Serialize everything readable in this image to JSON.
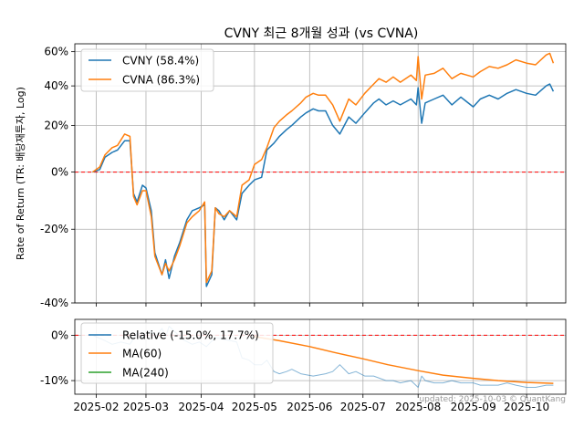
{
  "title": "CVNY 최근 8개월 성과 (vs CVNA)",
  "footer": "updated: 2025-10-03 © QuantKang",
  "colors": {
    "cvny": "#1f77b4",
    "cvna": "#ff7f0e",
    "relative": "#1f77b4",
    "ma60": "#ff7f0e",
    "ma240": "#2ca02c",
    "zero": "#ff0000",
    "grid": "#b0b0b0"
  },
  "chart_data": [
    {
      "type": "line",
      "title": "CVNY 최근 8개월 성과 (vs CVNA)",
      "ylabel": "Rate of Return (TR: 배당재투자, Log)",
      "xlabel": "",
      "yscale": "log",
      "ylim": [
        -40,
        65
      ],
      "yticks": [
        -40,
        -20,
        0,
        20,
        40,
        60
      ],
      "ytick_labels": [
        "-40%",
        "-20%",
        "0%",
        "20%",
        "40%",
        "60%"
      ],
      "x_ticks": [
        "2025-02",
        "2025-03",
        "2025-04",
        "2025-05",
        "2025-06",
        "2025-07",
        "2025-08",
        "2025-09",
        "2025-10"
      ],
      "grid": true,
      "legend_position": "top-left",
      "series": [
        {
          "name": "CVNY (58.4%)",
          "points": [
            [
              "2025-01-30",
              0
            ],
            [
              "2025-02-03",
              1
            ],
            [
              "2025-02-06",
              6
            ],
            [
              "2025-02-10",
              8
            ],
            [
              "2025-02-13",
              9
            ],
            [
              "2025-02-17",
              13
            ],
            [
              "2025-02-20",
              13
            ],
            [
              "2025-02-22",
              -8
            ],
            [
              "2025-02-24",
              -11
            ],
            [
              "2025-02-27",
              -5
            ],
            [
              "2025-03-01",
              -6
            ],
            [
              "2025-03-04",
              -14
            ],
            [
              "2025-03-06",
              -27
            ],
            [
              "2025-03-10",
              -33
            ],
            [
              "2025-03-12",
              -29
            ],
            [
              "2025-03-14",
              -34
            ],
            [
              "2025-03-17",
              -28
            ],
            [
              "2025-03-20",
              -24
            ],
            [
              "2025-03-24",
              -17
            ],
            [
              "2025-03-27",
              -14
            ],
            [
              "2025-03-31",
              -13
            ],
            [
              "2025-04-03",
              -12
            ],
            [
              "2025-04-04",
              -36
            ],
            [
              "2025-04-07",
              -33
            ],
            [
              "2025-04-09",
              -13
            ],
            [
              "2025-04-11",
              -14
            ],
            [
              "2025-04-14",
              -17
            ],
            [
              "2025-04-17",
              -14
            ],
            [
              "2025-04-21",
              -17
            ],
            [
              "2025-04-24",
              -8
            ],
            [
              "2025-04-28",
              -5
            ],
            [
              "2025-05-01",
              -3
            ],
            [
              "2025-05-05",
              -2
            ],
            [
              "2025-05-08",
              9
            ],
            [
              "2025-05-12",
              12
            ],
            [
              "2025-05-15",
              15
            ],
            [
              "2025-05-19",
              18
            ],
            [
              "2025-05-22",
              20
            ],
            [
              "2025-05-27",
              24
            ],
            [
              "2025-05-30",
              26
            ],
            [
              "2025-06-03",
              28
            ],
            [
              "2025-06-06",
              27
            ],
            [
              "2025-06-10",
              27
            ],
            [
              "2025-06-14",
              20
            ],
            [
              "2025-06-18",
              16
            ],
            [
              "2025-06-23",
              24
            ],
            [
              "2025-06-27",
              21
            ],
            [
              "2025-07-02",
              26
            ],
            [
              "2025-07-07",
              31
            ],
            [
              "2025-07-10",
              33
            ],
            [
              "2025-07-14",
              30
            ],
            [
              "2025-07-18",
              32
            ],
            [
              "2025-07-22",
              30
            ],
            [
              "2025-07-28",
              33
            ],
            [
              "2025-07-31",
              30
            ],
            [
              "2025-08-01",
              39
            ],
            [
              "2025-08-03",
              21
            ],
            [
              "2025-08-05",
              31
            ],
            [
              "2025-08-10",
              33
            ],
            [
              "2025-08-15",
              35
            ],
            [
              "2025-08-20",
              30
            ],
            [
              "2025-08-25",
              34
            ],
            [
              "2025-09-01",
              29
            ],
            [
              "2025-09-05",
              33
            ],
            [
              "2025-09-10",
              35
            ],
            [
              "2025-09-15",
              33
            ],
            [
              "2025-09-20",
              36
            ],
            [
              "2025-09-25",
              38
            ],
            [
              "2025-10-01",
              36
            ],
            [
              "2025-10-06",
              35
            ],
            [
              "2025-10-12",
              40
            ],
            [
              "2025-10-14",
              41
            ],
            [
              "2025-10-16",
              37
            ]
          ]
        },
        {
          "name": "CVNA (86.3%)",
          "points": [
            [
              "2025-01-30",
              0
            ],
            [
              "2025-02-03",
              2
            ],
            [
              "2025-02-06",
              7
            ],
            [
              "2025-02-10",
              10
            ],
            [
              "2025-02-13",
              11
            ],
            [
              "2025-02-17",
              16
            ],
            [
              "2025-02-20",
              15
            ],
            [
              "2025-02-22",
              -9
            ],
            [
              "2025-02-24",
              -12
            ],
            [
              "2025-02-27",
              -7
            ],
            [
              "2025-03-01",
              -7
            ],
            [
              "2025-03-04",
              -16
            ],
            [
              "2025-03-06",
              -28
            ],
            [
              "2025-03-10",
              -33
            ],
            [
              "2025-03-12",
              -30
            ],
            [
              "2025-03-14",
              -32
            ],
            [
              "2025-03-17",
              -29
            ],
            [
              "2025-03-20",
              -25
            ],
            [
              "2025-03-24",
              -18
            ],
            [
              "2025-03-27",
              -16
            ],
            [
              "2025-03-31",
              -14
            ],
            [
              "2025-04-03",
              -11
            ],
            [
              "2025-04-04",
              -35
            ],
            [
              "2025-04-07",
              -32
            ],
            [
              "2025-04-09",
              -13
            ],
            [
              "2025-04-11",
              -15
            ],
            [
              "2025-04-14",
              -16
            ],
            [
              "2025-04-17",
              -14
            ],
            [
              "2025-04-21",
              -16
            ],
            [
              "2025-04-24",
              -5
            ],
            [
              "2025-04-28",
              -3
            ],
            [
              "2025-05-01",
              3
            ],
            [
              "2025-05-05",
              5
            ],
            [
              "2025-05-08",
              10
            ],
            [
              "2025-05-12",
              19
            ],
            [
              "2025-05-15",
              22
            ],
            [
              "2025-05-19",
              25
            ],
            [
              "2025-05-22",
              27
            ],
            [
              "2025-05-27",
              31
            ],
            [
              "2025-05-30",
              34
            ],
            [
              "2025-06-03",
              36
            ],
            [
              "2025-06-06",
              35
            ],
            [
              "2025-06-10",
              35
            ],
            [
              "2025-06-14",
              30
            ],
            [
              "2025-06-18",
              22
            ],
            [
              "2025-06-23",
              33
            ],
            [
              "2025-06-27",
              30
            ],
            [
              "2025-07-02",
              36
            ],
            [
              "2025-07-07",
              41
            ],
            [
              "2025-07-10",
              44
            ],
            [
              "2025-07-14",
              42
            ],
            [
              "2025-07-18",
              45
            ],
            [
              "2025-07-22",
              42
            ],
            [
              "2025-07-28",
              46
            ],
            [
              "2025-07-31",
              43
            ],
            [
              "2025-08-01",
              57
            ],
            [
              "2025-08-03",
              33
            ],
            [
              "2025-08-05",
              46
            ],
            [
              "2025-08-10",
              47
            ],
            [
              "2025-08-15",
              50
            ],
            [
              "2025-08-20",
              44
            ],
            [
              "2025-08-25",
              47
            ],
            [
              "2025-09-01",
              45
            ],
            [
              "2025-09-05",
              48
            ],
            [
              "2025-09-10",
              51
            ],
            [
              "2025-09-15",
              50
            ],
            [
              "2025-09-20",
              52
            ],
            [
              "2025-09-25",
              55
            ],
            [
              "2025-10-01",
              53
            ],
            [
              "2025-10-06",
              52
            ],
            [
              "2025-10-12",
              58
            ],
            [
              "2025-10-14",
              59
            ],
            [
              "2025-10-16",
              53
            ]
          ]
        }
      ],
      "reference_lines": [
        {
          "y": 0,
          "style": "dashed",
          "color": "#ff0000"
        }
      ]
    },
    {
      "type": "line",
      "ylabel": "",
      "ylim": [
        -13,
        3.5
      ],
      "yticks": [
        -10,
        0
      ],
      "ytick_labels": [
        "-10%",
        "0%"
      ],
      "x_ticks": [
        "2025-02",
        "2025-03",
        "2025-04",
        "2025-05",
        "2025-06",
        "2025-07",
        "2025-08",
        "2025-09",
        "2025-10"
      ],
      "grid": true,
      "legend_position": "top-left",
      "series": [
        {
          "name": "Relative (-15.0%, 17.7%)",
          "points": [
            [
              "2025-01-30",
              0
            ],
            [
              "2025-02-05",
              -1
            ],
            [
              "2025-02-10",
              -2
            ],
            [
              "2025-02-15",
              -1.5
            ],
            [
              "2025-02-20",
              -2
            ],
            [
              "2025-02-24",
              0.5
            ],
            [
              "2025-02-27",
              -0.5
            ],
            [
              "2025-03-04",
              1
            ],
            [
              "2025-03-06",
              -0.5
            ],
            [
              "2025-03-10",
              1.5
            ],
            [
              "2025-03-12",
              -0.5
            ],
            [
              "2025-03-14",
              2
            ],
            [
              "2025-03-18",
              0.5
            ],
            [
              "2025-03-22",
              -1
            ],
            [
              "2025-03-27",
              -2
            ],
            [
              "2025-03-31",
              -1.5
            ],
            [
              "2025-04-04",
              -2.5
            ],
            [
              "2025-04-09",
              -0.5
            ],
            [
              "2025-04-15",
              -1
            ],
            [
              "2025-04-21",
              -1.5
            ],
            [
              "2025-04-24",
              -5
            ],
            [
              "2025-04-28",
              -5.5
            ],
            [
              "2025-05-01",
              -6.5
            ],
            [
              "2025-05-05",
              -6.5
            ],
            [
              "2025-05-08",
              -5.5
            ],
            [
              "2025-05-12",
              -8
            ],
            [
              "2025-05-15",
              -8.5
            ],
            [
              "2025-05-19",
              -8
            ],
            [
              "2025-05-22",
              -7.5
            ],
            [
              "2025-05-27",
              -8.5
            ],
            [
              "2025-06-03",
              -9
            ],
            [
              "2025-06-10",
              -8.5
            ],
            [
              "2025-06-14",
              -8
            ],
            [
              "2025-06-18",
              -6.5
            ],
            [
              "2025-06-23",
              -8.5
            ],
            [
              "2025-06-27",
              -8
            ],
            [
              "2025-07-02",
              -9
            ],
            [
              "2025-07-07",
              -9
            ],
            [
              "2025-07-14",
              -10
            ],
            [
              "2025-07-18",
              -10
            ],
            [
              "2025-07-22",
              -10.5
            ],
            [
              "2025-07-28",
              -10
            ],
            [
              "2025-08-01",
              -11.5
            ],
            [
              "2025-08-03",
              -9
            ],
            [
              "2025-08-05",
              -10
            ],
            [
              "2025-08-10",
              -10.5
            ],
            [
              "2025-08-15",
              -10.5
            ],
            [
              "2025-08-20",
              -10
            ],
            [
              "2025-08-25",
              -10.5
            ],
            [
              "2025-09-01",
              -10.5
            ],
            [
              "2025-09-05",
              -11
            ],
            [
              "2025-09-10",
              -11
            ],
            [
              "2025-09-15",
              -11
            ],
            [
              "2025-09-20",
              -10.5
            ],
            [
              "2025-09-25",
              -11
            ],
            [
              "2025-10-01",
              -11.5
            ],
            [
              "2025-10-06",
              -11.5
            ],
            [
              "2025-10-12",
              -11
            ],
            [
              "2025-10-16",
              -11
            ]
          ]
        },
        {
          "name": "MA(60)",
          "points": [
            [
              "2025-05-01",
              -0.3
            ],
            [
              "2025-05-15",
              -1.2
            ],
            [
              "2025-06-01",
              -2.5
            ],
            [
              "2025-06-15",
              -3.8
            ],
            [
              "2025-07-01",
              -5.2
            ],
            [
              "2025-07-15",
              -6.5
            ],
            [
              "2025-08-01",
              -7.8
            ],
            [
              "2025-08-15",
              -8.8
            ],
            [
              "2025-09-01",
              -9.5
            ],
            [
              "2025-09-15",
              -10.0
            ],
            [
              "2025-10-01",
              -10.4
            ],
            [
              "2025-10-16",
              -10.6
            ]
          ]
        },
        {
          "name": "MA(240)",
          "points": []
        }
      ],
      "reference_lines": [
        {
          "y": 0,
          "style": "dashed",
          "color": "#ff0000"
        }
      ]
    }
  ]
}
